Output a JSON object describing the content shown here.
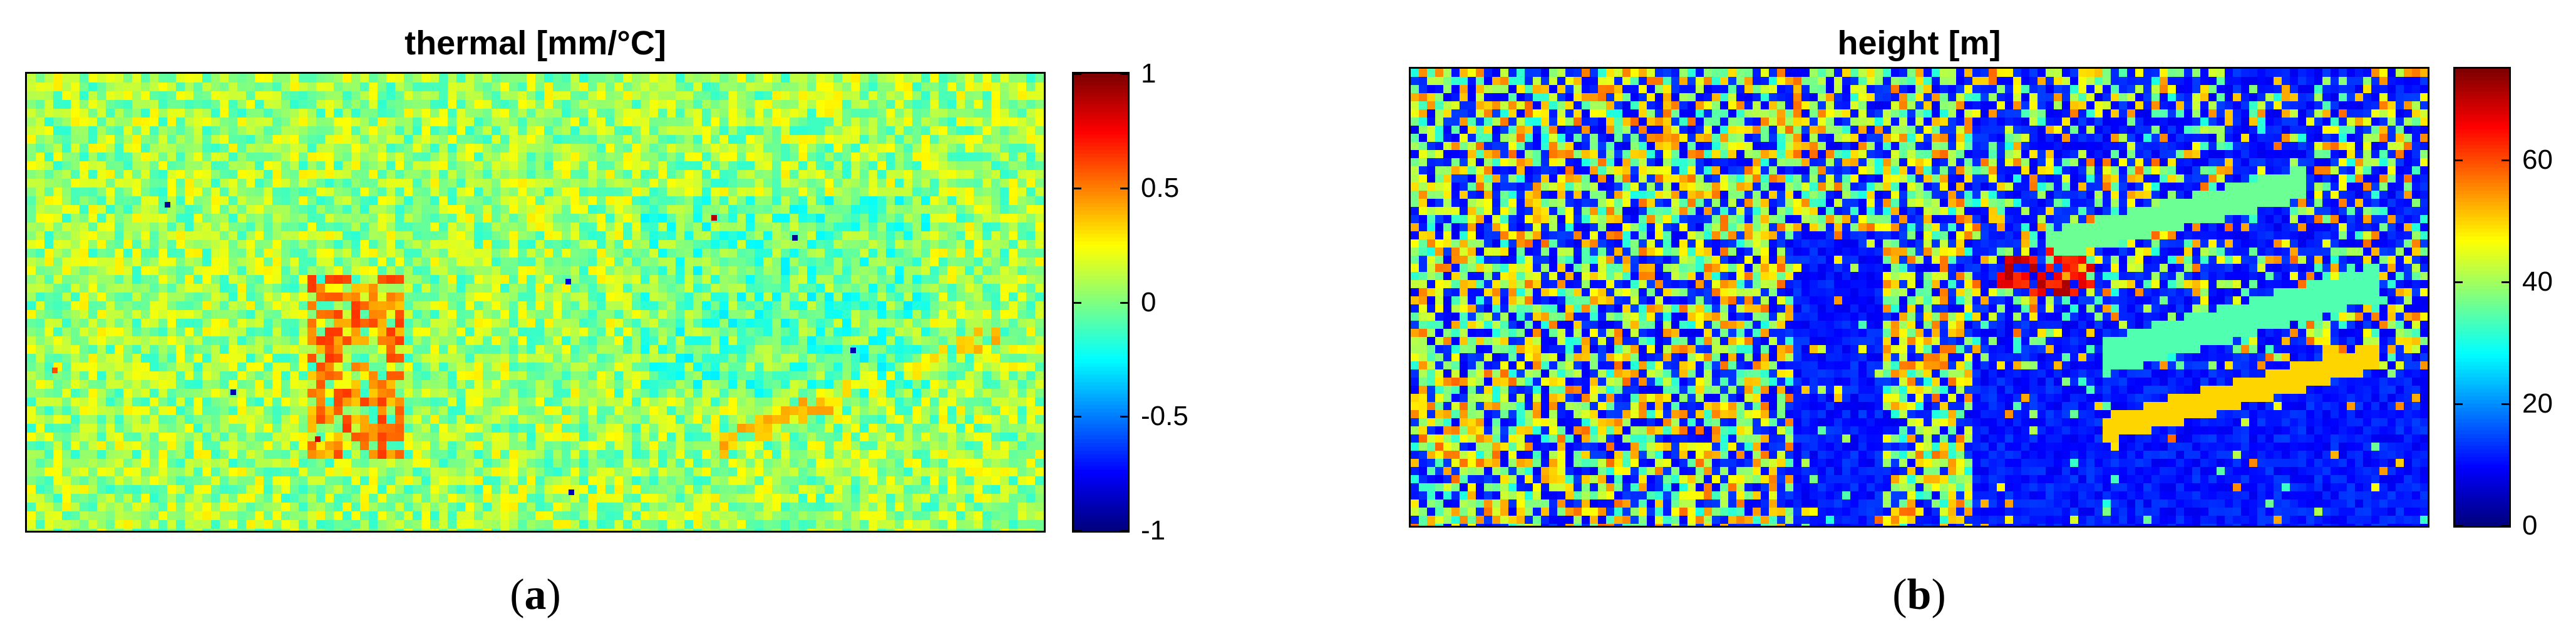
{
  "panels": [
    {
      "id": "a",
      "title": "thermal [mm/°C]",
      "caption_letter": "a",
      "colorbar": {
        "min": -1,
        "max": 1,
        "ticks": [
          "1",
          "0.5",
          "0",
          "-0.5",
          "-1"
        ],
        "tick_values": [
          1,
          0.5,
          0,
          -0.5,
          -1
        ]
      },
      "colormap": "jet"
    },
    {
      "id": "b",
      "title": "height [m]",
      "caption_letter": "b",
      "colorbar": {
        "min": 0,
        "max": 75,
        "ticks": [
          "60",
          "40",
          "20",
          "0"
        ],
        "tick_values": [
          60,
          40,
          20,
          0
        ]
      },
      "colormap": "jet"
    }
  ],
  "chart_data": [
    {
      "type": "heatmap",
      "title": "thermal [mm/°C]",
      "xlabel": "",
      "ylabel": "",
      "value_range": [
        -1,
        1
      ],
      "colorbar_ticks": [
        1,
        0.5,
        0,
        -0.5,
        -1
      ],
      "colormap": "jet"
    },
    {
      "type": "heatmap",
      "title": "height [m]",
      "xlabel": "",
      "ylabel": "",
      "value_range": [
        0,
        75
      ],
      "colorbar_ticks": [
        60,
        40,
        20,
        0
      ],
      "colormap": "jet"
    }
  ]
}
